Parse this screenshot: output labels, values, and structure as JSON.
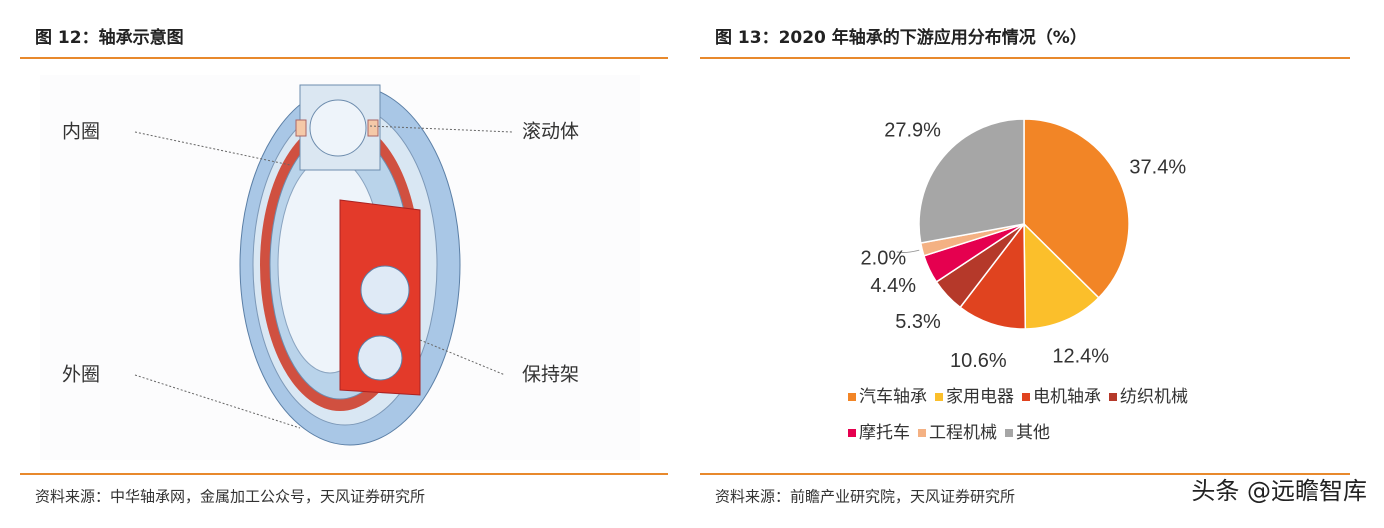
{
  "left": {
    "title": "图 12：轴承示意图",
    "labels": [
      "内圈",
      "滚动体",
      "外圈",
      "保持架"
    ],
    "source": "资料来源：中华轴承网，金属加工公众号，天风证券研究所"
  },
  "chart_data": {
    "type": "pie",
    "title": "图 13：2020 年轴承的下游应用分布情况（%）",
    "categories": [
      "汽车轴承",
      "家用电器",
      "电机轴承",
      "纺织机械",
      "摩托车",
      "工程机械",
      "其他"
    ],
    "values": [
      37.4,
      12.4,
      10.6,
      5.3,
      4.4,
      2.0,
      27.9
    ],
    "value_labels": [
      "37.4%",
      "12.4%",
      "10.6%",
      "5.3%",
      "4.4%",
      "2.0%",
      "27.9%"
    ],
    "colors": [
      "#f28526",
      "#fbbf2b",
      "#e0431f",
      "#b5392a",
      "#e5004f",
      "#f4b183",
      "#a6a6a6"
    ]
  },
  "right_source": "资料来源：前瞻产业研究院，天风证券研究所",
  "watermark": "头条 @远瞻智库"
}
